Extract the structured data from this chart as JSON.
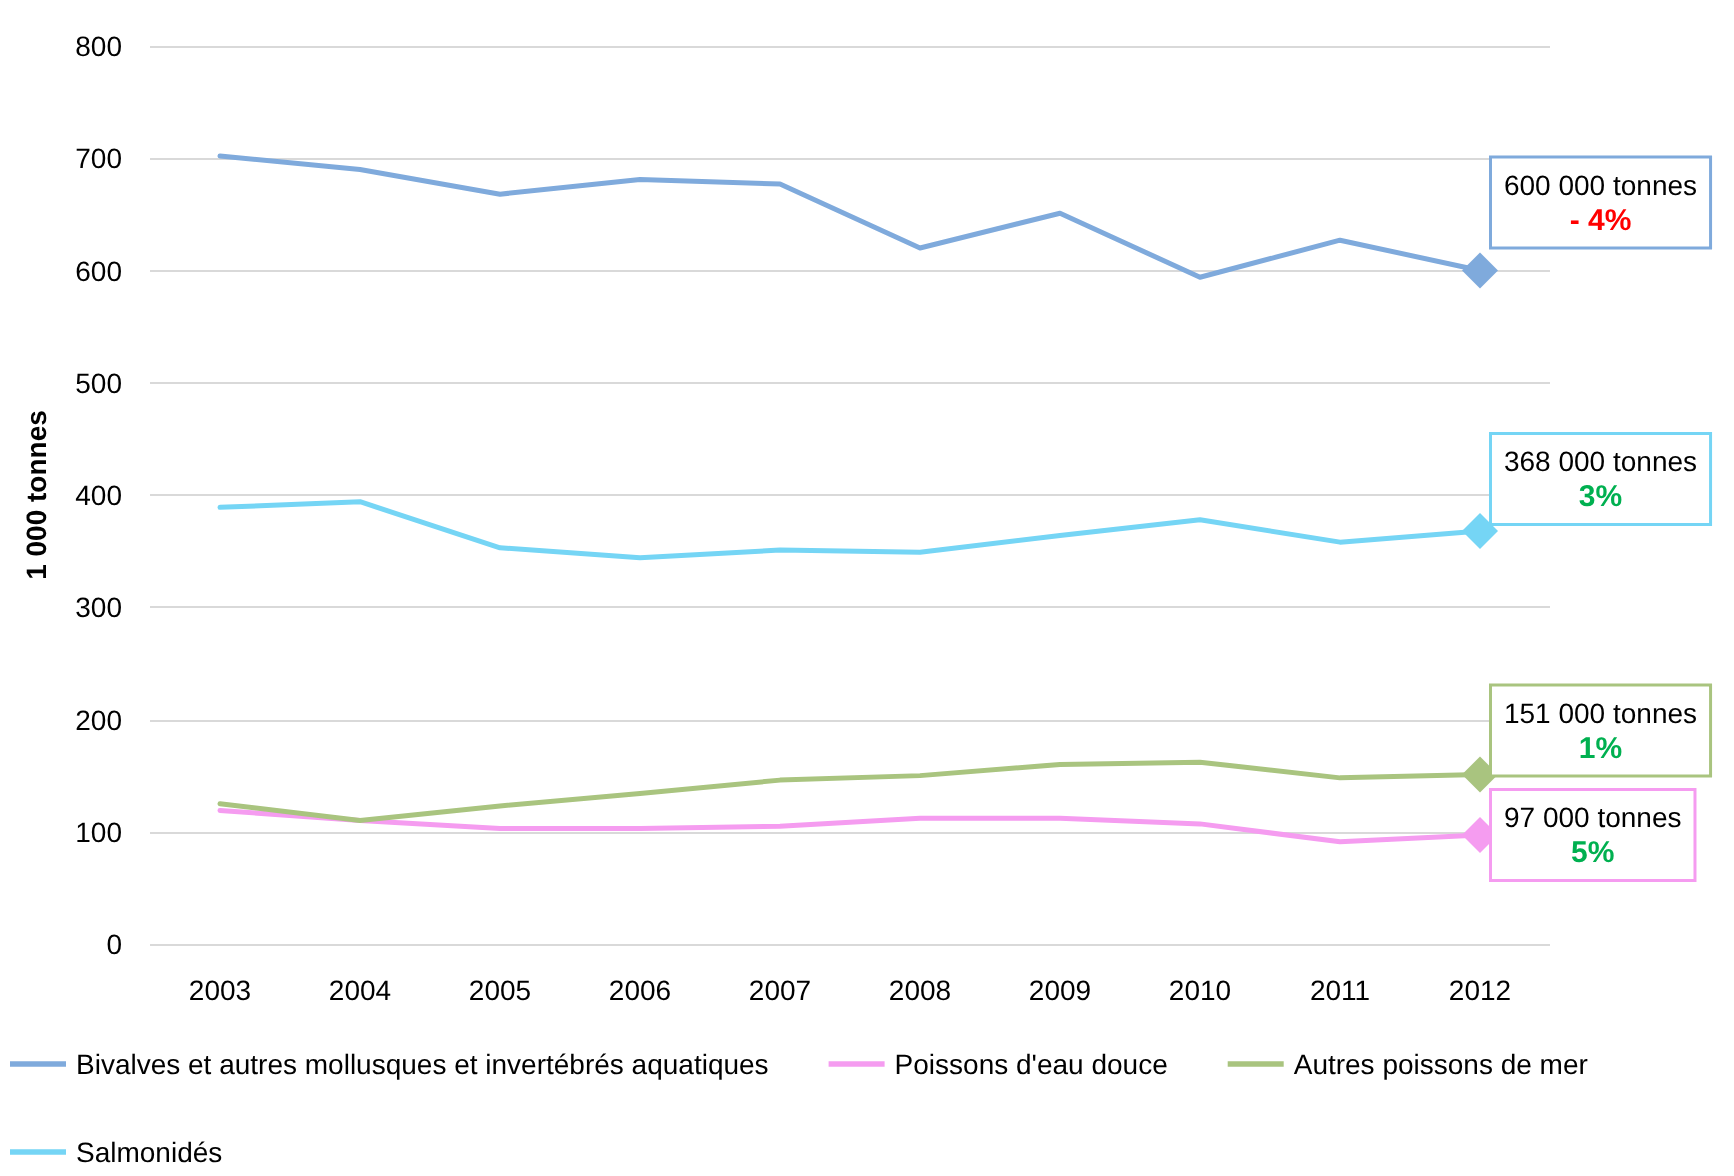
{
  "chart_data": {
    "type": "line",
    "categories": [
      "2003",
      "2004",
      "2005",
      "2006",
      "2007",
      "2008",
      "2009",
      "2010",
      "2011",
      "2012"
    ],
    "series": [
      {
        "name": "Bivalves et autres mollusques et invertébrés aquatiques",
        "color": "#7faadc",
        "values": [
          702,
          690,
          668,
          681,
          677,
          620,
          651,
          594,
          627,
          600
        ]
      },
      {
        "name": "Poissons d'eau douce",
        "color": "#f59cf0",
        "values": [
          119,
          110,
          103,
          103,
          105,
          112,
          112,
          107,
          91,
          97
        ]
      },
      {
        "name": "Autres poissons de mer",
        "color": "#a9c47f",
        "values": [
          125,
          110,
          123,
          134,
          146,
          150,
          160,
          162,
          148,
          151
        ]
      },
      {
        "name": "Salmonidés",
        "color": "#75d5f5",
        "values": [
          389,
          394,
          353,
          344,
          351,
          349,
          364,
          378,
          358,
          368
        ]
      }
    ],
    "ylabel": "1 000 tonnes",
    "ylim": [
      0,
      800
    ],
    "yticks": [
      0,
      100,
      200,
      300,
      400,
      500,
      600,
      700,
      800
    ],
    "grid": "y",
    "legend": "bottom",
    "marker": "none",
    "line_style": "solid",
    "annotations": [
      {
        "text": "600 000 tonnes\n- 4%",
        "x": "2012",
        "y": 600
      },
      {
        "text": "97 000 tonnes\n5%",
        "x": "2012",
        "y": 97
      },
      {
        "text": "151 000 tonnes\n1%",
        "x": "2012",
        "y": 151
      },
      {
        "text": "368 000 tonnes\n3%",
        "x": "2012",
        "y": 368
      }
    ]
  }
}
